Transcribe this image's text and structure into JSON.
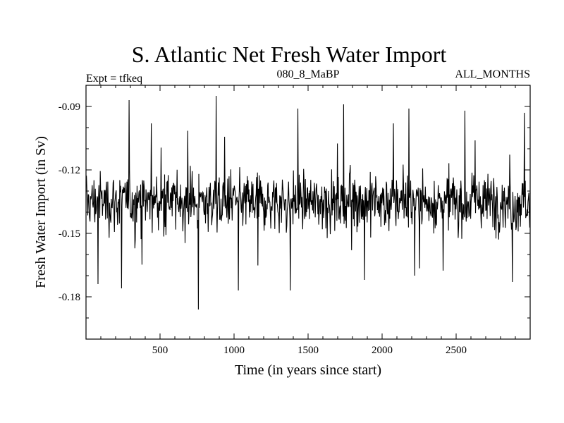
{
  "chart_data": {
    "type": "line",
    "title": "S. Atlantic Net Fresh Water Import",
    "subtitle_left": "Expt = tfkeq",
    "subtitle_center": "080_8_MaBP",
    "subtitle_right": "ALL_MONTHS",
    "xlabel": "Time (in years since start)",
    "ylabel": "Fresh Water Import (in Sv)",
    "xlim": [
      0,
      3000
    ],
    "ylim": [
      -0.2,
      -0.08
    ],
    "x_ticks": [
      500,
      1000,
      1500,
      2000,
      2500
    ],
    "y_ticks": [
      -0.09,
      -0.12,
      -0.15,
      -0.18
    ],
    "x_tick_labels": [
      "500",
      "1000",
      "1500",
      "2000",
      "2500"
    ],
    "y_tick_labels": [
      "-0.09",
      "-0.12",
      "-0.15",
      "-0.18"
    ],
    "grid": false,
    "series": [
      {
        "line_color": "#000000",
        "values_summary": {
          "mean": -0.135,
          "typical_range": [
            -0.155,
            -0.115
          ]
        },
        "peaks": [
          {
            "x": 290,
            "y": -0.087
          },
          {
            "x": 440,
            "y": -0.098
          },
          {
            "x": 880,
            "y": -0.085
          },
          {
            "x": 1430,
            "y": -0.091
          },
          {
            "x": 1740,
            "y": -0.089
          },
          {
            "x": 2180,
            "y": -0.091
          },
          {
            "x": 2560,
            "y": -0.092
          },
          {
            "x": 2960,
            "y": -0.093
          }
        ],
        "troughs": [
          {
            "x": 80,
            "y": -0.174
          },
          {
            "x": 240,
            "y": -0.176
          },
          {
            "x": 760,
            "y": -0.186
          },
          {
            "x": 1030,
            "y": -0.177
          },
          {
            "x": 1380,
            "y": -0.177
          },
          {
            "x": 1880,
            "y": -0.172
          },
          {
            "x": 2220,
            "y": -0.17
          },
          {
            "x": 2880,
            "y": -0.173
          }
        ]
      }
    ]
  }
}
